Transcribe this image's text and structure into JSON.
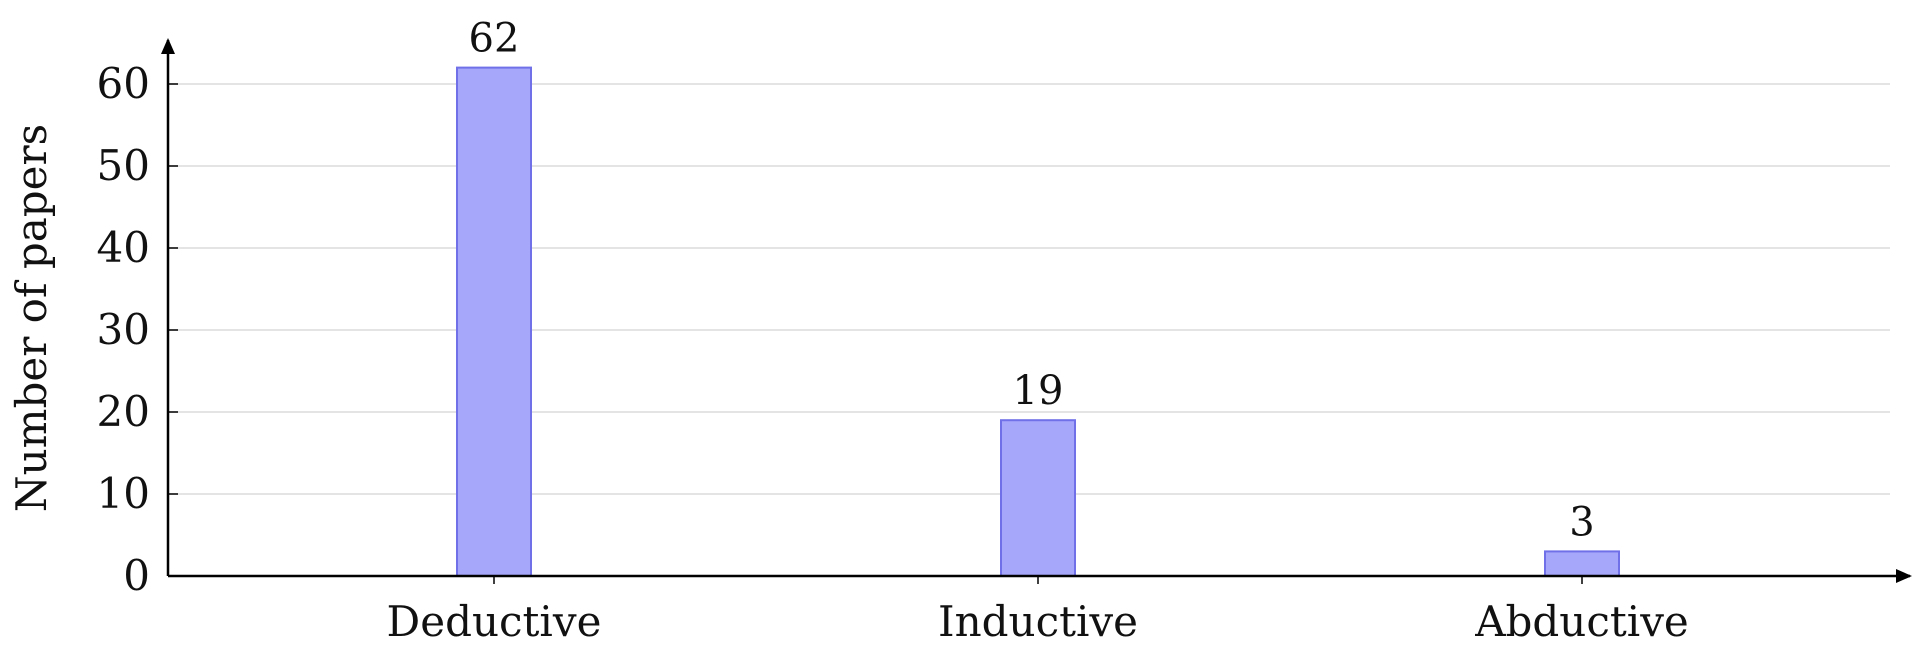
{
  "chart_data": {
    "type": "bar",
    "title": "",
    "xlabel": "",
    "ylabel": "Number of papers",
    "categories": [
      "Deductive",
      "Inductive",
      "Abductive"
    ],
    "values": [
      62,
      19,
      3
    ],
    "data_labels": [
      "62",
      "19",
      "3"
    ],
    "ylim": [
      0,
      65
    ],
    "yticks": [
      0,
      10,
      20,
      30,
      40,
      50,
      60
    ],
    "ytick_labels": [
      "0",
      "10",
      "20",
      "30",
      "40",
      "50",
      "60"
    ],
    "grid": true,
    "legend": "none",
    "colors": {
      "bar_fill": "#a6a6fb",
      "bar_stroke": "#7070e8",
      "grid": "#dcdcdc",
      "axis": "#000000"
    }
  }
}
